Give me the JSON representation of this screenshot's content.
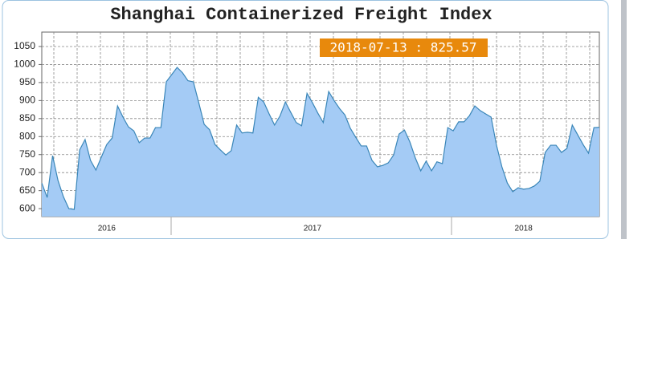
{
  "chart_data": {
    "type": "area",
    "title": "Shanghai Containerized Freight Index",
    "annotation": "2018-07-13 : 825.57",
    "categories": [
      null,
      null,
      null,
      null,
      null,
      null,
      null,
      null,
      null,
      null,
      null,
      null,
      "2016",
      null,
      null,
      null,
      null,
      null,
      null,
      null,
      null,
      null,
      null,
      null,
      null,
      null,
      null,
      null,
      null,
      null,
      null,
      null,
      null,
      null,
      null,
      null,
      null,
      null,
      null,
      null,
      null,
      null,
      null,
      null,
      null,
      null,
      null,
      null,
      null,
      null,
      "2017",
      null,
      null,
      null,
      null,
      null,
      null,
      null,
      null,
      null,
      null,
      null,
      null,
      null,
      null,
      null,
      null,
      null,
      null,
      null,
      null,
      null,
      null,
      null,
      null,
      null,
      null,
      null,
      null,
      null,
      null,
      null,
      null,
      null,
      null,
      null,
      null,
      null,
      null,
      "2018",
      null,
      null,
      null,
      null,
      null,
      null,
      null,
      null,
      null,
      null,
      null,
      null,
      null,
      null
    ],
    "values": [
      671,
      631,
      747,
      678,
      633,
      600,
      598,
      763,
      792,
      734,
      707,
      743,
      778,
      796,
      885,
      854,
      827,
      816,
      783,
      796,
      796,
      825,
      825,
      952,
      972,
      992,
      977,
      955,
      952,
      894,
      834,
      819,
      778,
      763,
      749,
      761,
      832,
      810,
      812,
      810,
      909,
      896,
      863,
      832,
      857,
      896,
      867,
      839,
      830,
      920,
      894,
      865,
      839,
      925,
      900,
      878,
      860,
      823,
      798,
      774,
      774,
      734,
      716,
      720,
      727,
      749,
      807,
      818,
      785,
      741,
      705,
      732,
      705,
      730,
      725,
      825,
      816,
      841,
      841,
      858,
      885,
      872,
      863,
      854,
      776,
      716,
      671,
      647,
      658,
      654,
      656,
      663,
      676,
      756,
      776,
      776,
      756,
      767,
      832,
      805,
      778,
      754,
      825,
      825.57
    ],
    "color": "#a4cbf5",
    "line_color": "#3a86b8",
    "ylim": [
      578,
      1090
    ],
    "yticks": [
      600,
      650,
      700,
      750,
      800,
      850,
      900,
      950,
      1000,
      1050
    ],
    "grid": true
  }
}
